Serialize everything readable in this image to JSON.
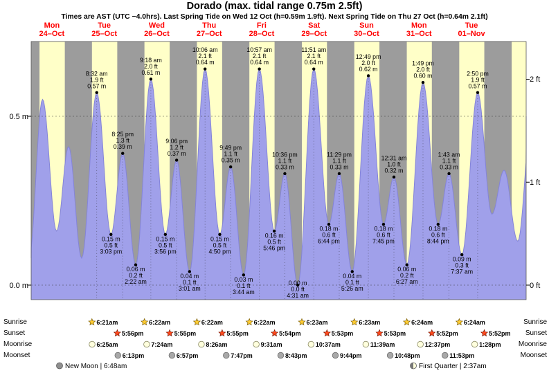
{
  "title": "Dorado (max. tidal range 0.75m 2.5ft)",
  "subtitle": "Times are AST (UTC −4.0hrs). Last Spring Tide on Wed 12 Oct (h=0.59m 1.9ft). Next Spring Tide on Thu 27 Oct (h=0.64m 2.1ft)",
  "colors": {
    "night": "#9c9c9c",
    "day": "#ffffc8",
    "tide_fill": "#a0a0ea",
    "tide_line": "#8484d8",
    "day_label": "#ff0000",
    "sunrise_star": "#ffcc33",
    "sunset_star": "#ff4a1e",
    "moon_light": "#ffffdd",
    "moon_dark": "#a8a8a8"
  },
  "days": [
    {
      "name": "Mon",
      "date": "24–Oct",
      "sunrise": "6:21am",
      "sunset": "5:56pm"
    },
    {
      "name": "Tue",
      "date": "25–Oct",
      "sunrise": "6:21am",
      "sunset": "5:56pm"
    },
    {
      "name": "Wed",
      "date": "26–Oct",
      "sunrise": "6:22am",
      "sunset": "5:55pm"
    },
    {
      "name": "Thu",
      "date": "27–Oct",
      "sunrise": "6:22am",
      "sunset": "5:55pm"
    },
    {
      "name": "Fri",
      "date": "28–Oct",
      "sunrise": "6:22am",
      "sunset": "5:54pm"
    },
    {
      "name": "Sat",
      "date": "29–Oct",
      "sunrise": "6:23am",
      "sunset": "5:53pm"
    },
    {
      "name": "Sun",
      "date": "30–Oct",
      "sunrise": "6:23am",
      "sunset": "5:53pm"
    },
    {
      "name": "Mon",
      "date": "31–Oct",
      "sunrise": "6:24am",
      "sunset": "5:52pm"
    },
    {
      "name": "Tue",
      "date": "01–Nov",
      "sunrise": "6:24am",
      "sunset": "5:52pm"
    },
    {
      "name": "",
      "date": "",
      "sunrise": "6:24am",
      "sunset": "5:52pm"
    }
  ],
  "chart_data": {
    "type": "area",
    "series_label": "tide height (m) vs time, Mon 24 Oct – Tue 01 Nov",
    "y_axis_left": [
      {
        "label": "0.5 m",
        "value": 0.5
      },
      {
        "label": "0.0 m",
        "value": 0.0
      }
    ],
    "y_axis_right": [
      {
        "label": "2 ft",
        "value": 0.6096
      },
      {
        "label": "1 ft",
        "value": 0.3048
      },
      {
        "label": "0 ft",
        "value": 0.0
      }
    ],
    "extremes": [
      {
        "day": 0,
        "time": "1:35am",
        "h": 0.08,
        "type": "low",
        "annotate": false
      },
      {
        "day": 0,
        "time": "7:45am",
        "h": 0.55,
        "type": "high",
        "annotate": false
      },
      {
        "day": 0,
        "time": "2:10pm",
        "h": 0.16,
        "type": "low",
        "annotate": false
      },
      {
        "day": 0,
        "time": "7:40pm",
        "h": 0.41,
        "type": "high",
        "annotate": false
      },
      {
        "day": 1,
        "time": "1:38am",
        "h": 0.08,
        "type": "low",
        "annotate": false
      },
      {
        "day": 1,
        "time": "8:32am",
        "h": 0.57,
        "type": "high",
        "annotate": true,
        "lines": [
          "8:32 am",
          "1.9 ft",
          "0.57 m"
        ]
      },
      {
        "day": 1,
        "time": "3:03pm",
        "h": 0.15,
        "type": "low",
        "annotate": true,
        "lines": [
          "0.15 m",
          "0.5 ft",
          "3:03 pm"
        ]
      },
      {
        "day": 1,
        "time": "8:25pm",
        "h": 0.39,
        "type": "high",
        "annotate": true,
        "lines": [
          "8:25 pm",
          "1.3 ft",
          "0.39 m"
        ]
      },
      {
        "day": 2,
        "time": "2:22am",
        "h": 0.06,
        "type": "low",
        "annotate": true,
        "lines": [
          "0.06 m",
          "0.2 ft",
          "2:22 am"
        ]
      },
      {
        "day": 2,
        "time": "9:18am",
        "h": 0.61,
        "type": "high",
        "annotate": true,
        "lines": [
          "9:18 am",
          "2.0 ft",
          "0.61 m"
        ]
      },
      {
        "day": 2,
        "time": "3:56pm",
        "h": 0.15,
        "type": "low",
        "annotate": true,
        "lines": [
          "0.15 m",
          "0.5 ft",
          "3:56 pm"
        ]
      },
      {
        "day": 2,
        "time": "9:06pm",
        "h": 0.37,
        "type": "high",
        "annotate": true,
        "lines": [
          "9:06 pm",
          "1.2 ft",
          "0.37 m"
        ]
      },
      {
        "day": 3,
        "time": "3:01am",
        "h": 0.04,
        "type": "low",
        "annotate": true,
        "lines": [
          "0.04 m",
          "0.1 ft",
          "3:01 am"
        ]
      },
      {
        "day": 3,
        "time": "10:06am",
        "h": 0.64,
        "type": "high",
        "annotate": true,
        "lines": [
          "10:06 am",
          "2.1 ft",
          "0.64 m"
        ]
      },
      {
        "day": 3,
        "time": "4:50pm",
        "h": 0.15,
        "type": "low",
        "annotate": true,
        "lines": [
          "0.15 m",
          "0.5 ft",
          "4:50 pm"
        ]
      },
      {
        "day": 3,
        "time": "9:49pm",
        "h": 0.35,
        "type": "high",
        "annotate": true,
        "lines": [
          "9:49 pm",
          "1.1 ft",
          "0.35 m"
        ]
      },
      {
        "day": 4,
        "time": "3:44am",
        "h": 0.03,
        "type": "low",
        "annotate": true,
        "lines": [
          "0.03 m",
          "0.1 ft",
          "3:44 am"
        ]
      },
      {
        "day": 4,
        "time": "10:57am",
        "h": 0.64,
        "type": "high",
        "annotate": true,
        "lines": [
          "10:57 am",
          "2.1 ft",
          "0.64 m"
        ]
      },
      {
        "day": 4,
        "time": "5:46pm",
        "h": 0.16,
        "type": "low",
        "annotate": true,
        "lines": [
          "0.16 m",
          "0.5 ft",
          "5:46 pm"
        ]
      },
      {
        "day": 4,
        "time": "10:36pm",
        "h": 0.33,
        "type": "high",
        "annotate": true,
        "lines": [
          "10:36 pm",
          "1.1 ft",
          "0.33 m"
        ]
      },
      {
        "day": 5,
        "time": "4:31am",
        "h": 0.0,
        "type": "low",
        "annotate": true,
        "lines": [
          "0.00 m",
          "0.0 ft",
          "4:31 am"
        ]
      },
      {
        "day": 5,
        "time": "11:51am",
        "h": 0.64,
        "type": "high",
        "annotate": true,
        "lines": [
          "11:51 am",
          "2.1 ft",
          "0.64 m"
        ]
      },
      {
        "day": 5,
        "time": "6:44pm",
        "h": 0.18,
        "type": "low",
        "annotate": true,
        "lines": [
          "0.18 m",
          "0.6 ft",
          "6:44 pm"
        ]
      },
      {
        "day": 5,
        "time": "11:29pm",
        "h": 0.33,
        "type": "high",
        "annotate": true,
        "lines": [
          "11:29 pm",
          "1.1 ft",
          "0.33 m"
        ]
      },
      {
        "day": 6,
        "time": "5:26am",
        "h": 0.04,
        "type": "low",
        "annotate": true,
        "lines": [
          "0.04 m",
          "0.1 ft",
          "5:26 am"
        ]
      },
      {
        "day": 6,
        "time": "12:49p",
        "h": 0.62,
        "type": "high",
        "annotate": true,
        "lines": [
          "12:49 pm",
          "2.0 ft",
          "0.62 m"
        ]
      },
      {
        "day": 6,
        "time": "7:45pm",
        "h": 0.18,
        "type": "low",
        "annotate": true,
        "lines": [
          "0.18 m",
          "0.6 ft",
          "7:45 pm"
        ]
      },
      {
        "day": 7,
        "time": "12:31am",
        "h": 0.32,
        "type": "high",
        "annotate": true,
        "lines": [
          "12:31 am",
          "1.0 ft",
          "0.32 m"
        ]
      },
      {
        "day": 7,
        "time": "6:27am",
        "h": 0.06,
        "type": "low",
        "annotate": true,
        "lines": [
          "0.06 m",
          "0.2 ft",
          "6:27 am"
        ]
      },
      {
        "day": 7,
        "time": "1:49pm",
        "h": 0.6,
        "type": "high",
        "annotate": true,
        "lines": [
          "1:49 pm",
          "2.0 ft",
          "0.60 m"
        ]
      },
      {
        "day": 7,
        "time": "8:44pm",
        "h": 0.18,
        "type": "low",
        "annotate": true,
        "lines": [
          "0.18 m",
          "0.6 ft",
          "8:44 pm"
        ]
      },
      {
        "day": 8,
        "time": "1:43am",
        "h": 0.33,
        "type": "high",
        "annotate": true,
        "lines": [
          "1:43 am",
          "1.1 ft",
          "0.33 m"
        ]
      },
      {
        "day": 8,
        "time": "7:37am",
        "h": 0.09,
        "type": "low",
        "annotate": true,
        "lines": [
          "0.09 m",
          "0.3 ft",
          "7:37 am"
        ]
      },
      {
        "day": 8,
        "time": "2:50pm",
        "h": 0.57,
        "type": "high",
        "annotate": true,
        "lines": [
          "2:50 pm",
          "1.9 ft",
          "0.57 m"
        ]
      },
      {
        "day": 8,
        "time": "9:20pm",
        "h": 0.21,
        "type": "low",
        "annotate": false
      },
      {
        "day": 9,
        "time": "2:55am",
        "h": 0.34,
        "type": "high",
        "annotate": false
      },
      {
        "day": 9,
        "time": "9:10am",
        "h": 0.13,
        "type": "low",
        "annotate": false
      },
      {
        "day": 9,
        "time": "3:40pm",
        "h": 0.5,
        "type": "high",
        "annotate": false
      }
    ]
  },
  "astro": {
    "rows": [
      {
        "label": "Sunrise",
        "icon": "sunrise-star",
        "entries": [
          {
            "day": 1,
            "time": "6:21am"
          },
          {
            "day": 2,
            "time": "6:22am"
          },
          {
            "day": 3,
            "time": "6:22am"
          },
          {
            "day": 4,
            "time": "6:22am"
          },
          {
            "day": 5,
            "time": "6:23am"
          },
          {
            "day": 6,
            "time": "6:23am"
          },
          {
            "day": 7,
            "time": "6:24am"
          },
          {
            "day": 8,
            "time": "6:24am"
          }
        ]
      },
      {
        "label": "Sunset",
        "icon": "sunset-star",
        "entries": [
          {
            "day": 1,
            "time": "5:56pm"
          },
          {
            "day": 2,
            "time": "5:55pm"
          },
          {
            "day": 3,
            "time": "5:55pm"
          },
          {
            "day": 4,
            "time": "5:54pm"
          },
          {
            "day": 5,
            "time": "5:53pm"
          },
          {
            "day": 6,
            "time": "5:53pm"
          },
          {
            "day": 7,
            "time": "5:52pm"
          },
          {
            "day": 8,
            "time": "5:52pm"
          }
        ]
      },
      {
        "label": "Moonrise",
        "icon": "moonrise-circle",
        "entries": [
          {
            "day": 1,
            "time": "6:25am"
          },
          {
            "day": 2,
            "time": "7:24am"
          },
          {
            "day": 3,
            "time": "8:26am"
          },
          {
            "day": 4,
            "time": "9:31am"
          },
          {
            "day": 5,
            "time": "10:37am"
          },
          {
            "day": 6,
            "time": "11:39am"
          },
          {
            "day": 7,
            "time": "12:37pm"
          },
          {
            "day": 8,
            "time": "1:28pm"
          }
        ]
      },
      {
        "label": "Moonset",
        "icon": "moonset-circle",
        "entries": [
          {
            "day": 1,
            "time": "6:13pm"
          },
          {
            "day": 2,
            "time": "6:57pm"
          },
          {
            "day": 3,
            "time": "7:47pm"
          },
          {
            "day": 4,
            "time": "8:43pm"
          },
          {
            "day": 5,
            "time": "9:44pm"
          },
          {
            "day": 6,
            "time": "10:48pm"
          },
          {
            "day": 7,
            "time": "11:53pm"
          }
        ]
      }
    ],
    "notes": {
      "left": {
        "icon": "new-moon",
        "text": "New Moon | 6:48am"
      },
      "right": {
        "icon": "first-quarter",
        "text": "First Quarter | 2:37am"
      }
    }
  }
}
